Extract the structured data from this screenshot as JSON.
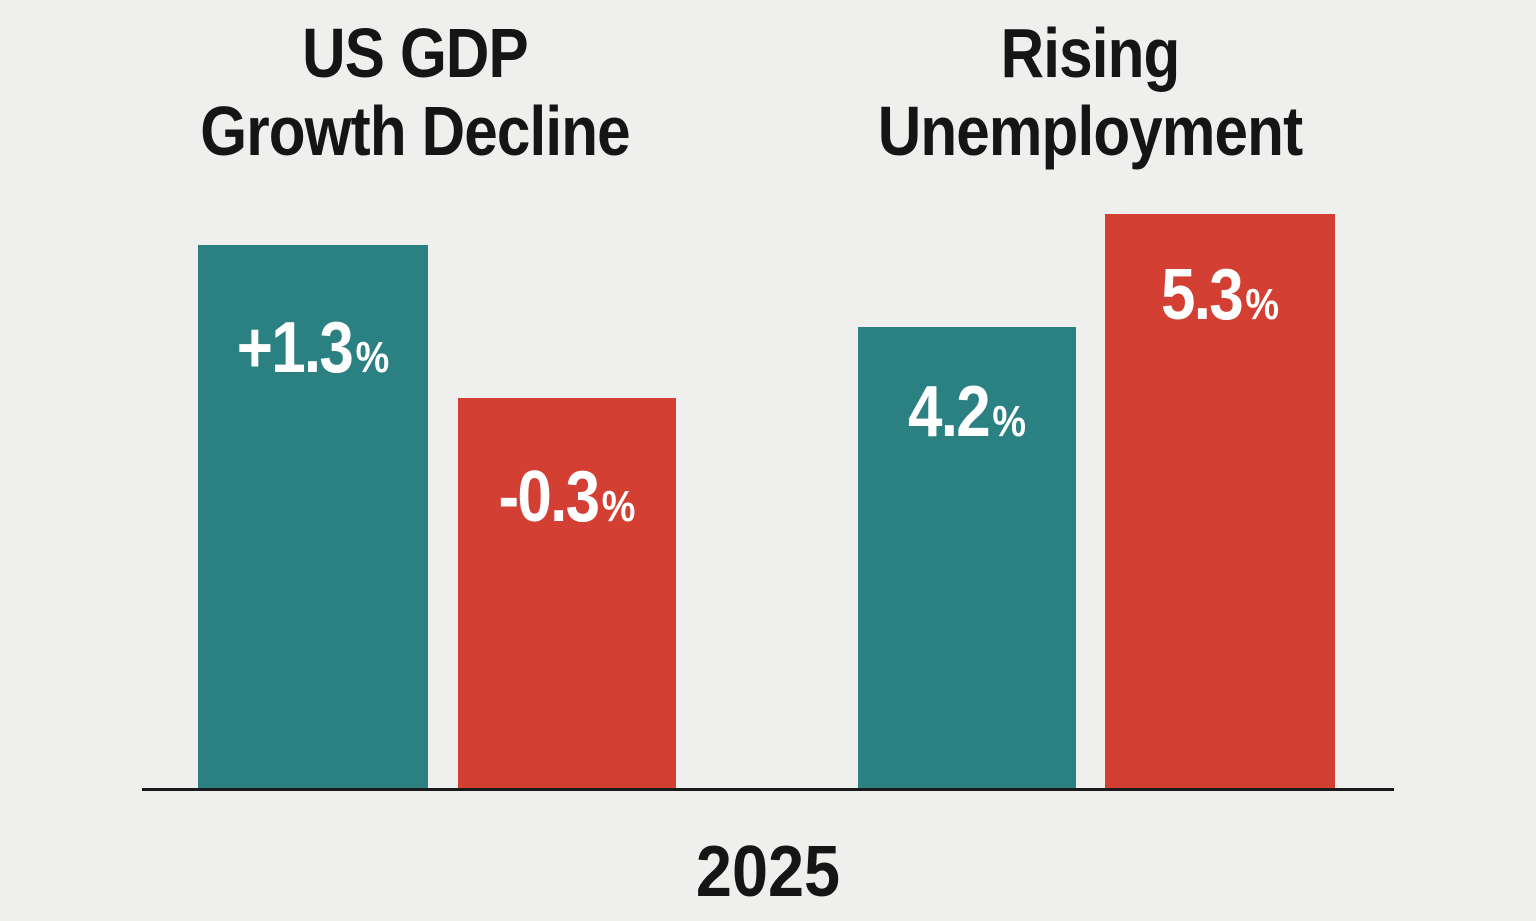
{
  "colors": {
    "background": "#efefed",
    "teal": "#2b8082",
    "red": "#d33f33",
    "text": "#151515"
  },
  "chart_data": [
    {
      "type": "bar",
      "title": [
        "US GDP",
        "Growth Decline"
      ],
      "values": [
        1.3,
        -0.3
      ],
      "value_labels": [
        "+1.3",
        "-0.3"
      ],
      "unit": "%",
      "colors": [
        "#2b8082",
        "#d33f33"
      ],
      "xlabel": "2025",
      "grid": false
    },
    {
      "type": "bar",
      "title": [
        "Rising",
        "Unemployment"
      ],
      "values": [
        4.2,
        5.3
      ],
      "value_labels": [
        "4.2",
        "5.3"
      ],
      "unit": "%",
      "colors": [
        "#2b8082",
        "#d33f33"
      ],
      "xlabel": "2025",
      "grid": false
    }
  ],
  "x_axis_label": "2025"
}
